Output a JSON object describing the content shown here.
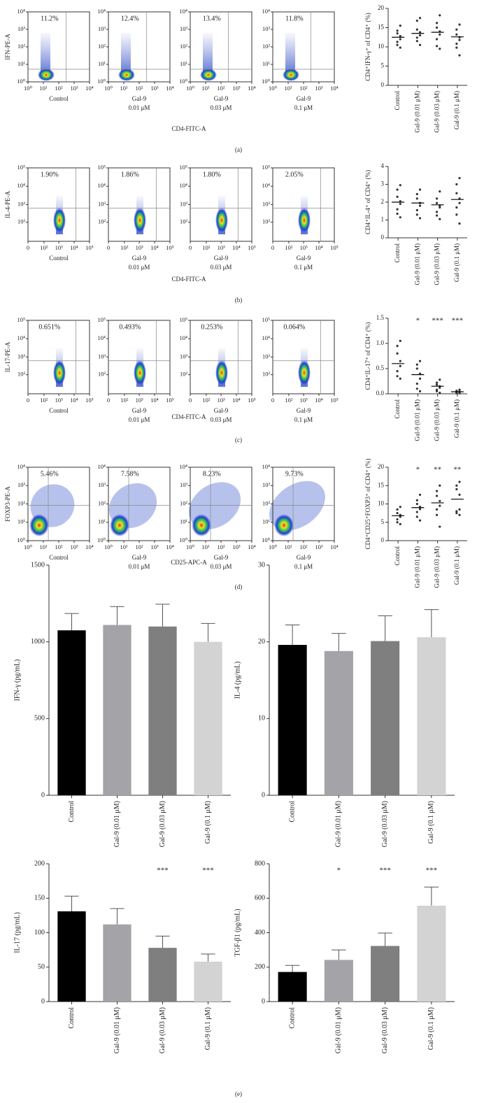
{
  "panel_labels": [
    "(a)",
    "(b)",
    "(c)",
    "(d)",
    "(e)"
  ],
  "chart_data": [
    {
      "type": "flow",
      "y_label": "IFN-PE-A",
      "x_label": "CD4-FITC-A",
      "scale": "log",
      "xlim": [
        1,
        10000
      ],
      "ylim": [
        1,
        10000
      ],
      "xticks": [
        {
          "value": 1,
          "label": "10⁰"
        },
        {
          "value": 10,
          "label": "10¹"
        },
        {
          "value": 100,
          "label": "10²"
        },
        {
          "value": 1000,
          "label": "10³"
        },
        {
          "value": 10000,
          "label": "10⁴"
        }
      ],
      "yticks": [
        {
          "value": 1,
          "label": "10⁰"
        },
        {
          "value": 10,
          "label": "10¹"
        },
        {
          "value": 100,
          "label": "10²"
        },
        {
          "value": 1000,
          "label": "10³"
        },
        {
          "value": 10000,
          "label": "10⁴"
        }
      ],
      "categories": [
        [
          "Control"
        ],
        [
          "Gal-9",
          "0.01 μM"
        ],
        [
          "Gal-9",
          "0.03 μM"
        ],
        [
          "Gal-9",
          "0.1 μM"
        ]
      ],
      "values": [
        11.2,
        12.4,
        13.4,
        11.8
      ],
      "value_labels": [
        "11.2%",
        "12.4%",
        "13.4%",
        "11.8%"
      ]
    },
    {
      "type": "dot",
      "y_label": "CD4⁺IFN-γ⁺ of CD4⁺ (%)",
      "ylim": [
        0,
        20
      ],
      "yticks": [
        0,
        5,
        10,
        15,
        20
      ],
      "categories": [
        "Control",
        "Gal-9 (0.01 μM)",
        "Gal-9 (0.03 μM)",
        "Gal-9 (0.1 μM)"
      ],
      "means": [
        12.5,
        13.5,
        13.8,
        12.6
      ],
      "points": [
        [
          15.5,
          14.2,
          13.5,
          12.8,
          12,
          11.3,
          10.5,
          9.8
        ],
        [
          17.5,
          16.8,
          14.5,
          13.8,
          13,
          12.4,
          11.5,
          10.5
        ],
        [
          18.2,
          16.2,
          15,
          14,
          13.2,
          12,
          10.2,
          9.5
        ],
        [
          15.8,
          14.5,
          13.2,
          12.5,
          11.8,
          10.8,
          9.8,
          7.8
        ]
      ]
    },
    {
      "type": "flow",
      "y_label": "IL-4-PE-A",
      "x_label": "CD4-FITC-A",
      "scale": "biexponential",
      "xlim": [
        0,
        100000
      ],
      "ylim": [
        0,
        100000
      ],
      "xticks": [
        0,
        {
          "value": 100,
          "label": "10²"
        },
        {
          "value": 1000,
          "label": "10³"
        },
        {
          "value": 10000,
          "label": "10⁴"
        },
        {
          "value": 100000,
          "label": "10⁵"
        }
      ],
      "yticks": [
        {
          "value": 100,
          "label": "10²"
        },
        {
          "value": 1000,
          "label": "10³"
        },
        {
          "value": 10000,
          "label": "10⁴"
        },
        {
          "value": 100000,
          "label": "10⁵"
        }
      ],
      "categories": [
        [
          "Control"
        ],
        [
          "Gal-9",
          "0.01 μM"
        ],
        [
          "Gal-9",
          "0.03 μM"
        ],
        [
          "Gal-9",
          "0.1 μM"
        ]
      ],
      "values": [
        1.9,
        1.86,
        1.8,
        2.05
      ],
      "value_labels": [
        "1.90%",
        "1.86%",
        "1.80%",
        "2.05%"
      ]
    },
    {
      "type": "dot",
      "y_label": "CD4⁺IL-4⁺ of CD4⁺ (%)",
      "ylim": [
        0,
        4
      ],
      "yticks": [
        0,
        1,
        2,
        3,
        4
      ],
      "categories": [
        "Control",
        "Gal-9 (0.01 μM)",
        "Gal-9 (0.03 μM)",
        "Gal-9 (0.1 μM)"
      ],
      "means": [
        2.0,
        1.95,
        1.85,
        2.15
      ],
      "points": [
        [
          2.95,
          2.7,
          2.3,
          2.05,
          1.9,
          1.6,
          1.35,
          1.15
        ],
        [
          2.7,
          2.45,
          2.2,
          1.95,
          1.8,
          1.55,
          1.3,
          1.1
        ],
        [
          2.6,
          2.2,
          1.95,
          1.8,
          1.7,
          1.45,
          1.25,
          1.05
        ],
        [
          3.35,
          3.0,
          2.5,
          2.2,
          1.95,
          1.7,
          1.3,
          0.8
        ]
      ]
    },
    {
      "type": "flow",
      "y_label": "IL-17-PE-A",
      "x_label": "CD4-FITC-A",
      "scale": "biexponential",
      "xlim": [
        0,
        100000
      ],
      "ylim": [
        0,
        100000
      ],
      "xticks": [
        0,
        {
          "value": 100,
          "label": "10²"
        },
        {
          "value": 1000,
          "label": "10³"
        },
        {
          "value": 10000,
          "label": "10⁴"
        },
        {
          "value": 100000,
          "label": "10⁵"
        }
      ],
      "yticks": [
        {
          "value": 100,
          "label": "10²"
        },
        {
          "value": 1000,
          "label": "10³"
        },
        {
          "value": 10000,
          "label": "10⁴"
        },
        {
          "value": 100000,
          "label": "10⁵"
        }
      ],
      "categories": [
        [
          "Control"
        ],
        [
          "Gal-9",
          "0.01 μM"
        ],
        [
          "Gal-9",
          "0.03 μM"
        ],
        [
          "Gal-9",
          "0.1 μM"
        ]
      ],
      "values": [
        0.651,
        0.493,
        0.253,
        0.064
      ],
      "value_labels": [
        "0.651%",
        "0.493%",
        "0.253%",
        "0.064%"
      ]
    },
    {
      "type": "dot",
      "y_label": "CD4⁺IL-17⁺ of CD4⁺ (%)",
      "ylim": [
        0,
        1.5
      ],
      "yticks": [
        {
          "value": 0,
          "label": "0.0"
        },
        {
          "value": 0.5,
          "label": "0.5"
        },
        {
          "value": 1,
          "label": "1.0"
        },
        {
          "value": 1.5,
          "label": "1.5"
        }
      ],
      "categories": [
        "Control",
        "Gal-9 (0.01 μM)",
        "Gal-9 (0.03 μM)",
        "Gal-9 (0.1 μM)"
      ],
      "significance": [
        null,
        "*",
        "***",
        "***"
      ],
      "means": [
        0.6,
        0.38,
        0.15,
        0.04
      ],
      "points": [
        [
          1.05,
          0.95,
          0.8,
          0.65,
          0.55,
          0.45,
          0.35,
          0.3
        ],
        [
          0.65,
          0.58,
          0.5,
          0.4,
          0.3,
          0.2,
          0.1,
          0.05
        ],
        [
          0.28,
          0.22,
          0.18,
          0.15,
          0.12,
          0.08,
          0.05,
          0.02
        ],
        [
          0.08,
          0.06,
          0.05,
          0.04,
          0.03,
          0.02,
          0.01,
          0.01
        ]
      ]
    },
    {
      "type": "flow",
      "y_label": "FOXP3-PE-A",
      "x_label": "CD25-APC-A",
      "scale": "log",
      "xlim": [
        1,
        10000
      ],
      "ylim": [
        1,
        10000
      ],
      "xticks": [
        {
          "value": 1,
          "label": "10⁰"
        },
        {
          "value": 10,
          "label": "10¹"
        },
        {
          "value": 100,
          "label": "10²"
        },
        {
          "value": 1000,
          "label": "10³"
        },
        {
          "value": 10000,
          "label": "10⁴"
        }
      ],
      "yticks": [
        {
          "value": 1,
          "label": "10⁰"
        },
        {
          "value": 10,
          "label": "10¹"
        },
        {
          "value": 100,
          "label": "10²"
        },
        {
          "value": 1000,
          "label": "10³"
        },
        {
          "value": 10000,
          "label": "10⁴"
        }
      ],
      "categories": [
        [
          "Control"
        ],
        [
          "Gal-9",
          "0.01 μM"
        ],
        [
          "Gal-9",
          "0.03 μM"
        ],
        [
          "Gal-9",
          "0.1 μM"
        ]
      ],
      "values": [
        5.46,
        7.58,
        8.23,
        9.73
      ],
      "value_labels": [
        "5.46%",
        "7.58%",
        "8.23%",
        "9.73%"
      ]
    },
    {
      "type": "dot",
      "y_label": "CD4⁺CD25⁺FOXP3⁺ of CD4⁺ (%)",
      "ylim": [
        0,
        20
      ],
      "yticks": [
        0,
        5,
        10,
        15,
        20
      ],
      "categories": [
        "Control",
        "Gal-9 (0.01 μM)",
        "Gal-9 (0.03 μM)",
        "Gal-9 (0.1 μM)"
      ],
      "significance": [
        null,
        "*",
        "**",
        "**"
      ],
      "means": [
        6.8,
        9.0,
        10.3,
        11.3
      ],
      "points": [
        [
          9.2,
          8.5,
          7.5,
          7,
          6.5,
          5.8,
          5,
          4.5
        ],
        [
          12.5,
          11,
          10,
          9.2,
          8.6,
          7.8,
          6.5,
          5.5
        ],
        [
          15,
          13.5,
          12.2,
          10.8,
          9.5,
          8.5,
          7,
          3.8
        ],
        [
          16,
          15,
          14,
          12.5,
          8.5,
          8,
          7.5,
          7
        ]
      ]
    },
    {
      "type": "bar",
      "y_label": "IFN-γ (pg/mL)",
      "ylim": [
        0,
        1500
      ],
      "yticks": [
        0,
        500,
        1000,
        1500
      ],
      "categories": [
        "Control",
        "Gal-9 (0.01 μM)",
        "Gal-9 (0.03 μM)",
        "Gal-9 (0.1 μM)"
      ],
      "colors": [
        "#000000",
        "#a3a3a8",
        "#7f7f7f",
        "#d3d3d3"
      ],
      "values": [
        1075,
        1110,
        1100,
        1000
      ],
      "errors": [
        110,
        120,
        145,
        120
      ]
    },
    {
      "type": "bar",
      "y_label": "IL-4 (pg/mL)",
      "ylim": [
        0,
        30
      ],
      "yticks": [
        0,
        10,
        20,
        30
      ],
      "categories": [
        "Control",
        "Gal-9 (0.01 μM)",
        "Gal-9 (0.03 μM)",
        "Gal-9 (0.1 μM)"
      ],
      "colors": [
        "#000000",
        "#a3a3a8",
        "#7f7f7f",
        "#d3d3d3"
      ],
      "values": [
        19.6,
        18.8,
        20.1,
        20.6
      ],
      "errors": [
        2.6,
        2.3,
        3.3,
        3.6
      ]
    },
    {
      "type": "bar",
      "y_label": "IL-17 (pg/mL)",
      "ylim": [
        0,
        200
      ],
      "yticks": [
        0,
        50,
        100,
        150,
        200
      ],
      "categories": [
        "Control",
        "Gal-9 (0.01 μM)",
        "Gal-9 (0.03 μM)",
        "Gal-9 (0.1 μM)"
      ],
      "colors": [
        "#000000",
        "#a3a3a8",
        "#7f7f7f",
        "#d3d3d3"
      ],
      "significance": [
        null,
        null,
        "***",
        "***"
      ],
      "values": [
        131,
        112,
        78,
        58
      ],
      "errors": [
        22,
        23,
        17,
        11
      ]
    },
    {
      "type": "bar",
      "y_label": "TGF-β1 (pg/mL)",
      "ylim": [
        0,
        800
      ],
      "yticks": [
        0,
        200,
        400,
        600,
        800
      ],
      "categories": [
        "Control",
        "Gal-9 (0.01 μM)",
        "Gal-9 (0.03 μM)",
        "Gal-9 (0.1 μM)"
      ],
      "colors": [
        "#000000",
        "#a3a3a8",
        "#7f7f7f",
        "#d3d3d3"
      ],
      "significance": [
        null,
        "*",
        "***",
        "***"
      ],
      "values": [
        172,
        242,
        323,
        557
      ],
      "errors": [
        38,
        58,
        75,
        108
      ]
    }
  ]
}
